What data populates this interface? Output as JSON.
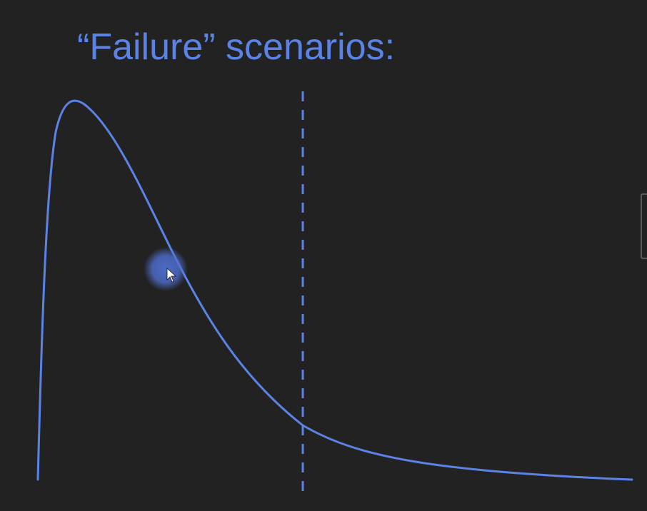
{
  "slide": {
    "title": "“Failure” scenarios:"
  },
  "colors": {
    "background": "#222222",
    "accent": "#5b83e6",
    "pointer_halo": "#4f6fd0",
    "pointer": "#ffffff"
  },
  "icons": {
    "pointer": "arrow-cursor-icon",
    "pointer_halo": "cursor-highlight-icon"
  }
}
